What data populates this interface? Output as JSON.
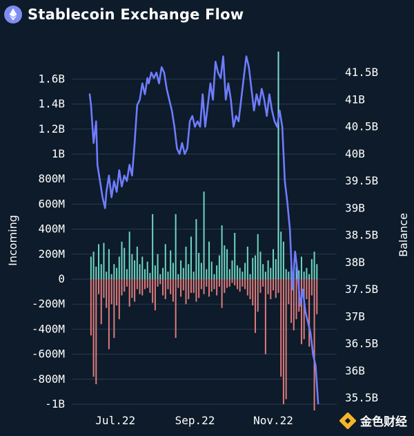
{
  "header": {
    "icon": "ethereum-icon",
    "title": "Stablecoin Exchange Flow"
  },
  "watermark": {
    "icon": "jinse-logo-icon",
    "text": "金色财经"
  },
  "colors": {
    "background": "#0d1b2a",
    "grid": "#2a3d55",
    "inflow": "#6fd6c0",
    "outflow": "#e07a7a",
    "balance": "#6f7cff",
    "spike": "#7fe0d0",
    "icon": "#7e8cf2",
    "watermark": "#f5b42a"
  },
  "chart_data": {
    "type": "bar",
    "title": "Stablecoin Exchange Flow",
    "x_tick_labels": [
      "Jul.22",
      "Sep.22",
      "Nov.22"
    ],
    "x_ticks_day": [
      20,
      82,
      143
    ],
    "ylabel_left": "Incoming",
    "ylabel_right": "Balance",
    "left_axis": {
      "tick_values": [
        1600000000,
        1400000000,
        1200000000,
        1000000000,
        800000000,
        600000000,
        400000000,
        200000000,
        0,
        -200000000,
        -400000000,
        -600000000,
        -800000000,
        -1000000000
      ],
      "tick_labels": [
        "1.6B",
        "1.4B",
        "1.2B",
        "1B",
        "800M",
        "600M",
        "400M",
        "200M",
        "0",
        "-200M",
        "-400M",
        "-600M",
        "-800M",
        "-1B"
      ],
      "ylim": [
        -1000000000,
        1600000000
      ]
    },
    "right_axis": {
      "tick_values": [
        41.5,
        41,
        40.5,
        40,
        39.5,
        39,
        38.5,
        38,
        37.5,
        37,
        36.5,
        36,
        35.5
      ],
      "tick_labels": [
        "41.5B",
        "41B",
        "40.5B",
        "40B",
        "39.5B",
        "39B",
        "38.5B",
        "38B",
        "37.5B",
        "37B",
        "36.5B",
        "36B",
        "35.5B"
      ],
      "ylim": [
        35.4,
        41.8
      ],
      "unit": "B"
    },
    "grid": true,
    "series": [
      {
        "name": "Incoming",
        "kind": "bar",
        "days": [
          1,
          3,
          5,
          7,
          9,
          11,
          13,
          15,
          17,
          19,
          21,
          23,
          25,
          27,
          29,
          31,
          33,
          35,
          37,
          39,
          41,
          43,
          45,
          47,
          49,
          51,
          53,
          55,
          57,
          59,
          61,
          63,
          65,
          67,
          69,
          71,
          73,
          75,
          77,
          79,
          81,
          83,
          85,
          87,
          89,
          91,
          93,
          95,
          97,
          99,
          101,
          103,
          105,
          107,
          109,
          111,
          113,
          115,
          117,
          119,
          121,
          123,
          125,
          127,
          129,
          131,
          133,
          135,
          137,
          139,
          141,
          143,
          145,
          147,
          149,
          151,
          153,
          155,
          157,
          159,
          161,
          163,
          165,
          167,
          169,
          171,
          173,
          175,
          177
        ],
        "inflow": [
          180000000,
          220000000,
          100000000,
          280000000,
          120000000,
          290000000,
          60000000,
          240000000,
          40000000,
          120000000,
          90000000,
          180000000,
          300000000,
          250000000,
          80000000,
          380000000,
          200000000,
          150000000,
          260000000,
          120000000,
          180000000,
          80000000,
          140000000,
          50000000,
          520000000,
          110000000,
          200000000,
          40000000,
          90000000,
          280000000,
          60000000,
          230000000,
          130000000,
          520000000,
          40000000,
          150000000,
          90000000,
          260000000,
          120000000,
          340000000,
          60000000,
          480000000,
          210000000,
          130000000,
          700000000,
          80000000,
          300000000,
          140000000,
          40000000,
          110000000,
          190000000,
          430000000,
          270000000,
          240000000,
          80000000,
          150000000,
          370000000,
          110000000,
          90000000,
          60000000,
          130000000,
          260000000,
          40000000,
          170000000,
          190000000,
          360000000,
          220000000,
          120000000,
          60000000,
          150000000,
          90000000,
          240000000,
          160000000,
          130000000,
          380000000,
          300000000,
          80000000,
          60000000,
          140000000,
          50000000,
          100000000,
          70000000,
          180000000,
          60000000,
          90000000,
          40000000,
          160000000,
          220000000,
          120000000
        ],
        "outflow": [
          -450000000,
          -780000000,
          -840000000,
          -120000000,
          -360000000,
          -150000000,
          -230000000,
          -560000000,
          -200000000,
          -470000000,
          -210000000,
          -320000000,
          -130000000,
          -100000000,
          -60000000,
          -220000000,
          -150000000,
          -180000000,
          -80000000,
          -120000000,
          -130000000,
          -80000000,
          -70000000,
          -110000000,
          -190000000,
          -250000000,
          -60000000,
          -40000000,
          -130000000,
          -160000000,
          -80000000,
          -120000000,
          -180000000,
          -470000000,
          -70000000,
          -140000000,
          -90000000,
          -200000000,
          -160000000,
          -110000000,
          -110000000,
          -180000000,
          -150000000,
          -80000000,
          -120000000,
          -60000000,
          -140000000,
          -100000000,
          -80000000,
          -130000000,
          -60000000,
          -230000000,
          -110000000,
          -70000000,
          -60000000,
          -30000000,
          -50000000,
          -80000000,
          -100000000,
          -60000000,
          -80000000,
          -130000000,
          -160000000,
          -210000000,
          -430000000,
          -260000000,
          -110000000,
          -60000000,
          -600000000,
          -120000000,
          -160000000,
          -90000000,
          -150000000,
          -110000000,
          -780000000,
          -1000000000,
          -960000000,
          -200000000,
          -350000000,
          -410000000,
          -320000000,
          -260000000,
          -520000000,
          -480000000,
          -160000000,
          -540000000,
          -130000000,
          -1050000000,
          -280000000
        ]
      },
      {
        "name": "Balance",
        "kind": "line",
        "axis": "right",
        "days": [
          0,
          1,
          3,
          5,
          6,
          8,
          10,
          12,
          13,
          15,
          17,
          19,
          21,
          23,
          25,
          27,
          29,
          31,
          33,
          35,
          37,
          39,
          41,
          43,
          45,
          46,
          48,
          50,
          52,
          54,
          56,
          58,
          60,
          62,
          64,
          66,
          68,
          70,
          72,
          74,
          76,
          78,
          80,
          82,
          84,
          86,
          88,
          90,
          92,
          94,
          96,
          98,
          100,
          102,
          104,
          106,
          108,
          110,
          112,
          114,
          116,
          118,
          120,
          122,
          124,
          126,
          128,
          130,
          132,
          134,
          136,
          138,
          140,
          142,
          144,
          146,
          148,
          150,
          152,
          154,
          156,
          158,
          160,
          162,
          164,
          166,
          168,
          170,
          172,
          174,
          176,
          178
        ],
        "values": [
          41.1,
          40.9,
          40.2,
          40.6,
          39.8,
          39.5,
          39.2,
          39.0,
          39.3,
          39.6,
          39.2,
          39.5,
          39.3,
          39.7,
          39.4,
          39.6,
          39.5,
          39.8,
          39.6,
          40.2,
          40.9,
          41.0,
          41.3,
          41.1,
          41.4,
          41.3,
          41.5,
          41.4,
          41.5,
          41.3,
          41.6,
          41.5,
          41.2,
          41.0,
          40.8,
          40.5,
          40.1,
          40.0,
          40.2,
          40.0,
          40.1,
          40.6,
          40.7,
          40.5,
          40.6,
          40.5,
          41.1,
          40.5,
          40.9,
          41.3,
          41.0,
          41.7,
          41.5,
          41.4,
          41.8,
          41.0,
          41.3,
          41.0,
          40.5,
          40.7,
          40.6,
          41.0,
          41.4,
          41.8,
          41.6,
          41.2,
          40.8,
          41.1,
          40.9,
          41.2,
          41.0,
          40.7,
          41.1,
          40.8,
          40.6,
          40.5,
          40.8,
          40.5,
          39.5,
          39.1,
          38.6,
          37.5,
          38.2,
          37.8,
          37.2,
          37.5,
          37.1,
          36.9,
          36.7,
          36.3,
          36.1,
          35.4
        ]
      }
    ],
    "spike_day": 147,
    "spike_value": 1820000000
  }
}
